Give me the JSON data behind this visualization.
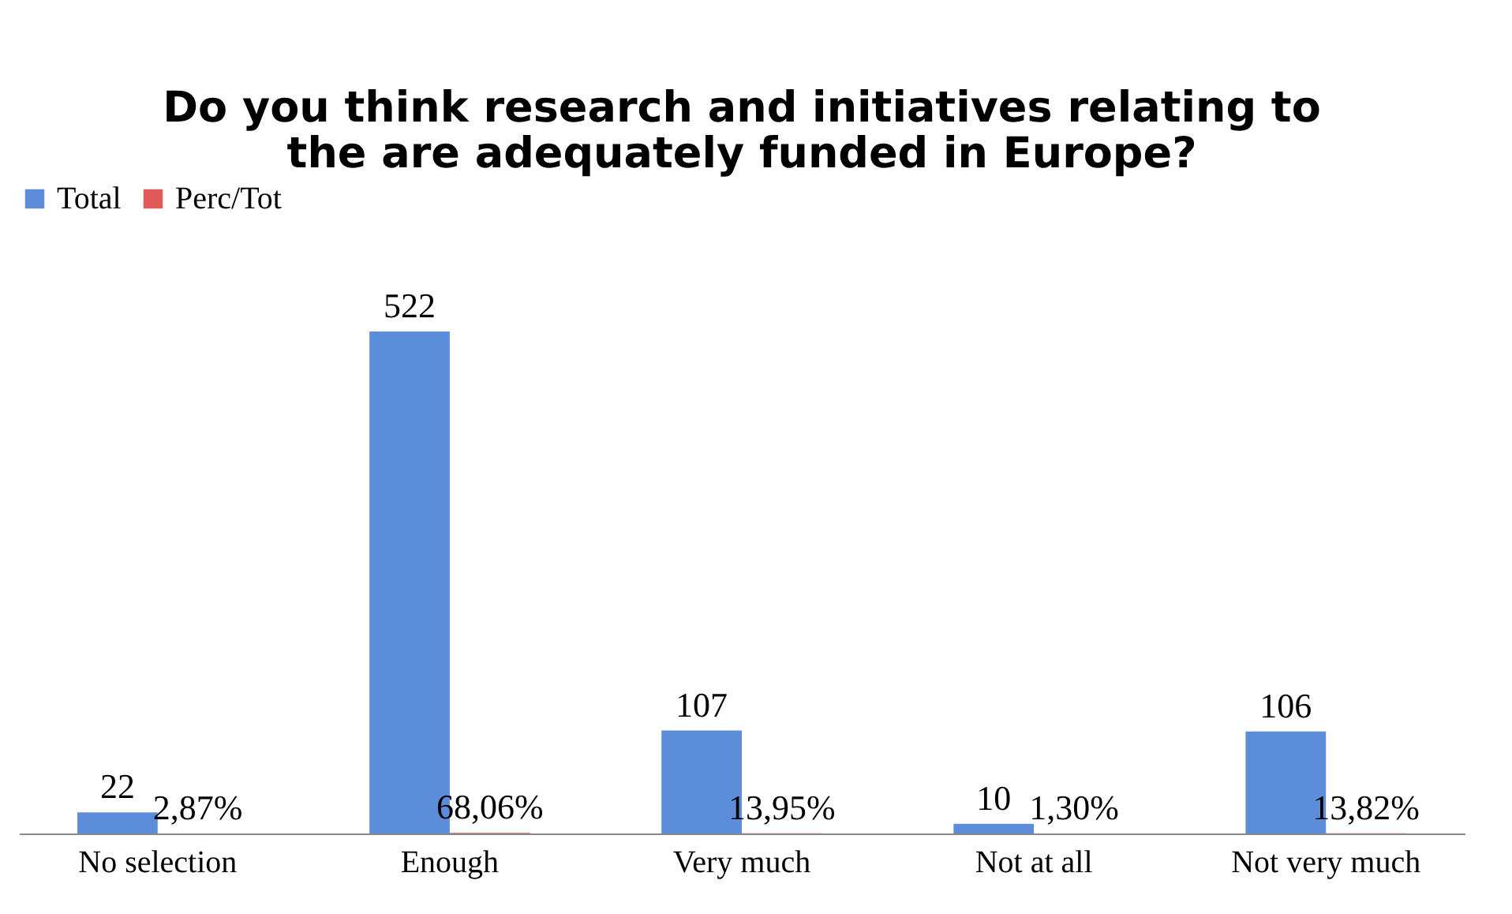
{
  "chart_data": {
    "type": "bar",
    "title": [
      "Do you think research and initiatives relating to",
      "the are adequately funded in Europe?"
    ],
    "categories": [
      "No selection",
      "Enough",
      "Very much",
      "Not at all",
      "Not very much"
    ],
    "series": [
      {
        "name": "Total",
        "color": "#5b8ddb",
        "values": [
          22,
          522,
          107,
          10,
          106
        ]
      },
      {
        "name": "Perc/Tot",
        "color": "#e05a5a",
        "values": [
          0.0287,
          0.6806,
          0.1395,
          0.013,
          0.1382
        ],
        "value_labels": [
          "2,87%",
          "68,06%",
          "13,95%",
          "1,30%",
          "13,82%"
        ]
      }
    ],
    "data_labels": true,
    "legend": "top",
    "grid": false,
    "tick_labels": "x"
  }
}
